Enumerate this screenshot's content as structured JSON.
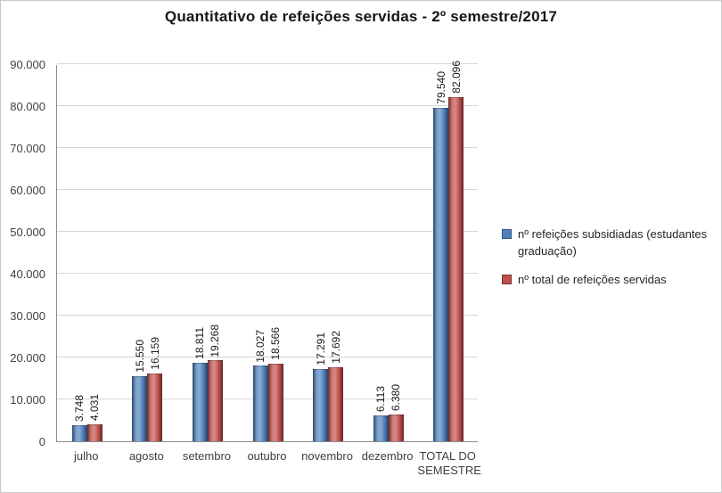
{
  "chart_data": {
    "type": "bar",
    "title": "Quantitativo de refeições servidas - 2º semestre/2017",
    "categories": [
      "julho",
      "agosto",
      "setembro",
      "outubro",
      "novembro",
      "dezembro",
      "TOTAL DO SEMESTRE"
    ],
    "series": [
      {
        "name": "nº refeições subsidiadas (estudantes graduação)",
        "color": "#4F81BD",
        "values": [
          3748,
          15550,
          18811,
          18027,
          17291,
          6113,
          79540
        ],
        "labels": [
          "3.748",
          "15.550",
          "18.811",
          "18.027",
          "17.291",
          "6.113",
          "79.540"
        ]
      },
      {
        "name": "nº total de refeições servidas",
        "color": "#C0504D",
        "values": [
          4031,
          16159,
          19268,
          18566,
          17692,
          6380,
          82096
        ],
        "labels": [
          "4.031",
          "16.159",
          "19.268",
          "18.566",
          "17.692",
          "6.380",
          "82.096"
        ]
      }
    ],
    "ylim": [
      0,
      90000
    ],
    "y_tick_step": 10000,
    "y_ticks": [
      "0",
      "10.000",
      "20.000",
      "30.000",
      "40.000",
      "50.000",
      "60.000",
      "70.000",
      "80.000",
      "90.000"
    ],
    "grid": true,
    "legend_position": "right"
  }
}
